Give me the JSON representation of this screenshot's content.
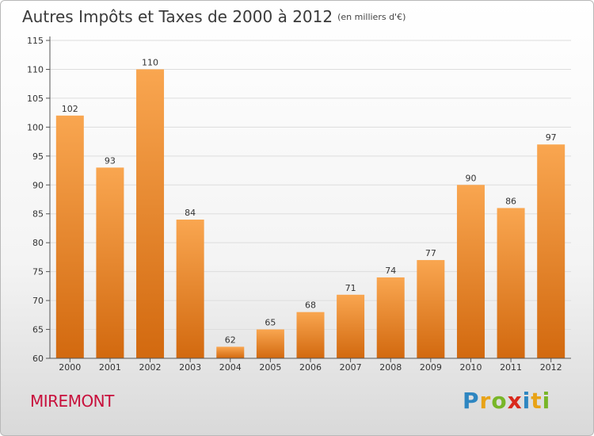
{
  "header": {
    "title": "Autres Impôts et Taxes de 2000 à 2012",
    "unit": "(en milliers d'€)"
  },
  "commune": {
    "name": "MIREMONT"
  },
  "brand": {
    "letters": [
      "P",
      "r",
      "o",
      "x",
      "i",
      "t",
      "i"
    ],
    "letter_colors": [
      "#2e86c1",
      "#e8a317",
      "#78b628",
      "#d9291c",
      "#2e86c1",
      "#e8a317",
      "#78b628"
    ]
  },
  "colors": {
    "bar_light": "#f9a650",
    "bar_dark": "#d2690f",
    "grid": "#dddddd",
    "axis": "#555555"
  },
  "chart_data": {
    "type": "bar",
    "categories": [
      "2000",
      "2001",
      "2002",
      "2003",
      "2004",
      "2005",
      "2006",
      "2007",
      "2008",
      "2009",
      "2010",
      "2011",
      "2012"
    ],
    "values": [
      102,
      93,
      110,
      84,
      62,
      65,
      68,
      71,
      74,
      77,
      90,
      86,
      97
    ],
    "title": "Autres Impôts et Taxes de 2000 à 2012",
    "xlabel": "",
    "ylabel": "",
    "ylim": [
      60,
      115
    ],
    "yticks": [
      60,
      65,
      70,
      75,
      80,
      85,
      90,
      95,
      100,
      105,
      110,
      115
    ],
    "grid": true,
    "data_labels": true
  }
}
